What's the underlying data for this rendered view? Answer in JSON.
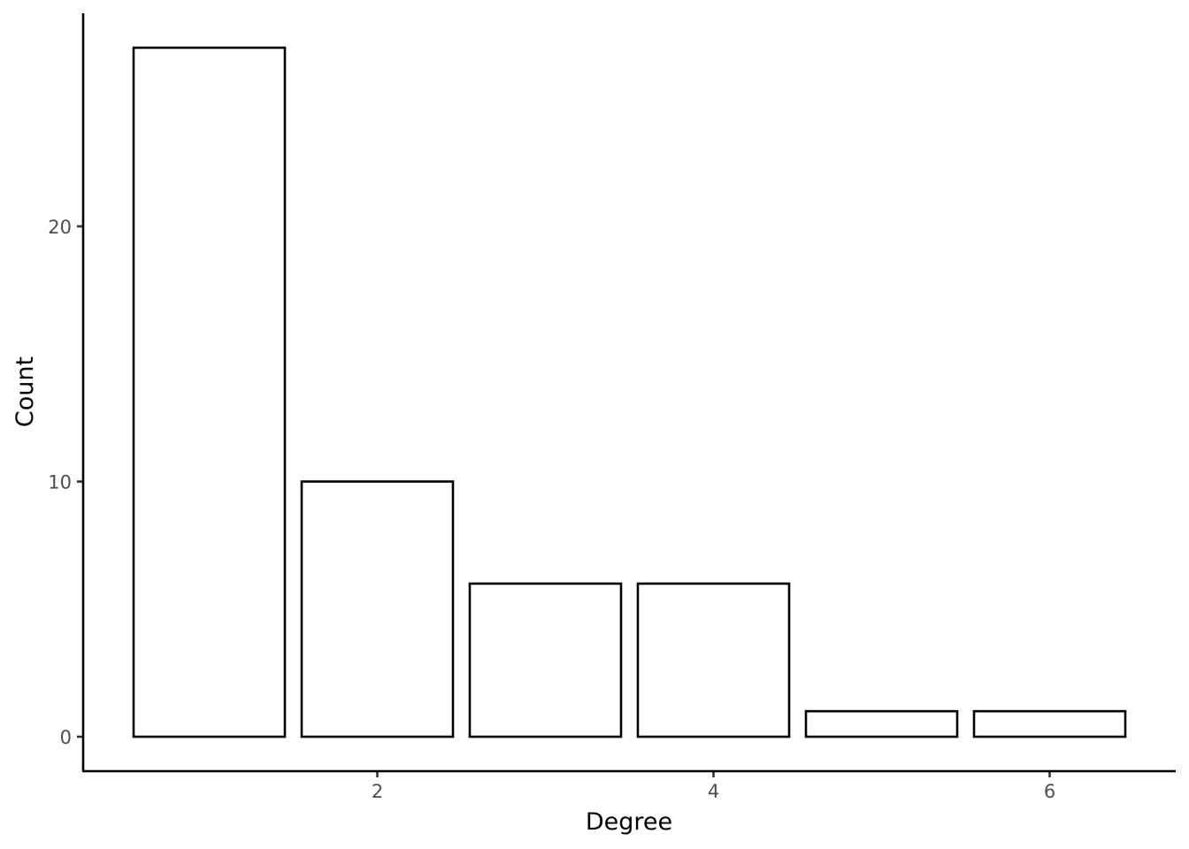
{
  "chart_data": {
    "type": "bar",
    "x": [
      1,
      2,
      3,
      4,
      5,
      6
    ],
    "values": [
      27,
      10,
      6,
      6,
      1,
      1
    ],
    "xlabel": "Degree",
    "ylabel": "Count",
    "xticks": [
      2,
      4,
      6
    ],
    "yticks": [
      0,
      10,
      20
    ],
    "xlim": [
      0.25,
      6.75
    ],
    "ylim": [
      -1.35,
      28.35
    ],
    "bar_fill": "#ffffff",
    "bar_stroke": "#000000",
    "tick_label_color": "#4d4d4d",
    "grid": false,
    "legend": "none"
  }
}
